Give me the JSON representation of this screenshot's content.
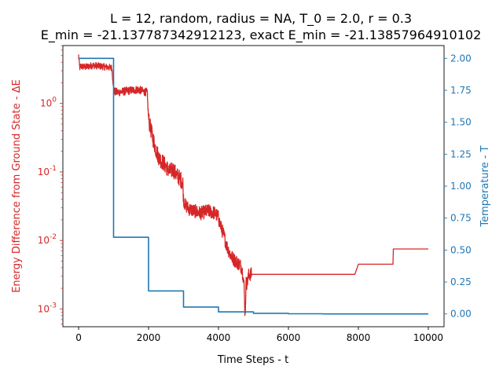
{
  "chart_data": {
    "type": "line",
    "title": "L = 12, random, radius = NA, T_0 = 2.0, r = 0.3",
    "subtitle": "E_min = -21.137787342912123, exact E_min = -21.13857964910102",
    "xlabel": "Time Steps - t",
    "ylabel_left": "Energy Difference from Ground State - ΔE",
    "ylabel_right": "Temperature - T",
    "xlim": [
      -450,
      10450
    ],
    "ylim_left": [
      0.00055,
      7.0
    ],
    "ylim_left_scale": "log",
    "ylim_right": [
      -0.1,
      2.1
    ],
    "x_ticks": [
      0,
      2000,
      4000,
      6000,
      8000,
      10000
    ],
    "x_tick_labels": [
      "0",
      "2000",
      "4000",
      "6000",
      "8000",
      "10000"
    ],
    "y_left_ticks": [
      0.001,
      0.01,
      0.1,
      1
    ],
    "y_left_tick_labels": [
      "10^{-3}",
      "10^{-2}",
      "10^{-1}",
      "10^{0}"
    ],
    "y_right_ticks": [
      0.0,
      0.25,
      0.5,
      0.75,
      1.0,
      1.25,
      1.5,
      1.75,
      2.0
    ],
    "y_right_tick_labels": [
      "0.00",
      "0.25",
      "0.50",
      "0.75",
      "1.00",
      "1.25",
      "1.50",
      "1.75",
      "2.00"
    ],
    "grid": false,
    "colors": {
      "energy": "#d62728",
      "temperature": "#1f77b4",
      "axis": "#000000"
    },
    "series": [
      {
        "axis": "left",
        "color": "#d62728",
        "noisy": true,
        "x": [
          0,
          30,
          60,
          200,
          400,
          600,
          800,
          950,
          1000,
          1020,
          1100,
          1300,
          1500,
          1700,
          1850,
          1960,
          2000,
          2050,
          2100,
          2200,
          2300,
          2400,
          2500,
          2600,
          2700,
          2800,
          2900,
          2980,
          3000,
          3050,
          3150,
          3300,
          3400,
          3500,
          3600,
          3700,
          3800,
          3900,
          3990,
          4050,
          4150,
          4250,
          4350,
          4450,
          4550,
          4650,
          4700,
          4730,
          4760,
          4790,
          4820,
          4870,
          4950,
          5000,
          5500,
          6000,
          7000,
          7900,
          8000,
          8500,
          8990,
          9000,
          9500,
          10000
        ],
        "y": [
          5.0,
          3.3,
          3.5,
          3.4,
          3.6,
          3.5,
          3.4,
          3.3,
          1.7,
          1.5,
          1.45,
          1.5,
          1.55,
          1.6,
          1.5,
          1.45,
          0.6,
          0.45,
          0.35,
          0.22,
          0.16,
          0.14,
          0.12,
          0.1,
          0.11,
          0.09,
          0.08,
          0.07,
          0.04,
          0.033,
          0.029,
          0.027,
          0.026,
          0.025,
          0.026,
          0.027,
          0.026,
          0.025,
          0.022,
          0.017,
          0.012,
          0.008,
          0.006,
          0.0052,
          0.0047,
          0.0042,
          0.0032,
          0.0022,
          0.0008,
          0.0024,
          0.0024,
          0.0032,
          0.0032,
          0.0032,
          0.0032,
          0.0032,
          0.0032,
          0.0032,
          0.0045,
          0.0045,
          0.0045,
          0.0075,
          0.0075,
          0.0075
        ]
      },
      {
        "axis": "right",
        "color": "#1f77b4",
        "step": true,
        "x": [
          0,
          1000,
          2000,
          3000,
          4000,
          5000,
          6000,
          7000,
          8000,
          9000,
          10000
        ],
        "y": [
          2.0,
          0.6,
          0.18,
          0.054,
          0.0162,
          0.00486,
          0.00146,
          0.000437,
          0.000131,
          3.94e-05,
          1.18e-05
        ]
      }
    ]
  }
}
